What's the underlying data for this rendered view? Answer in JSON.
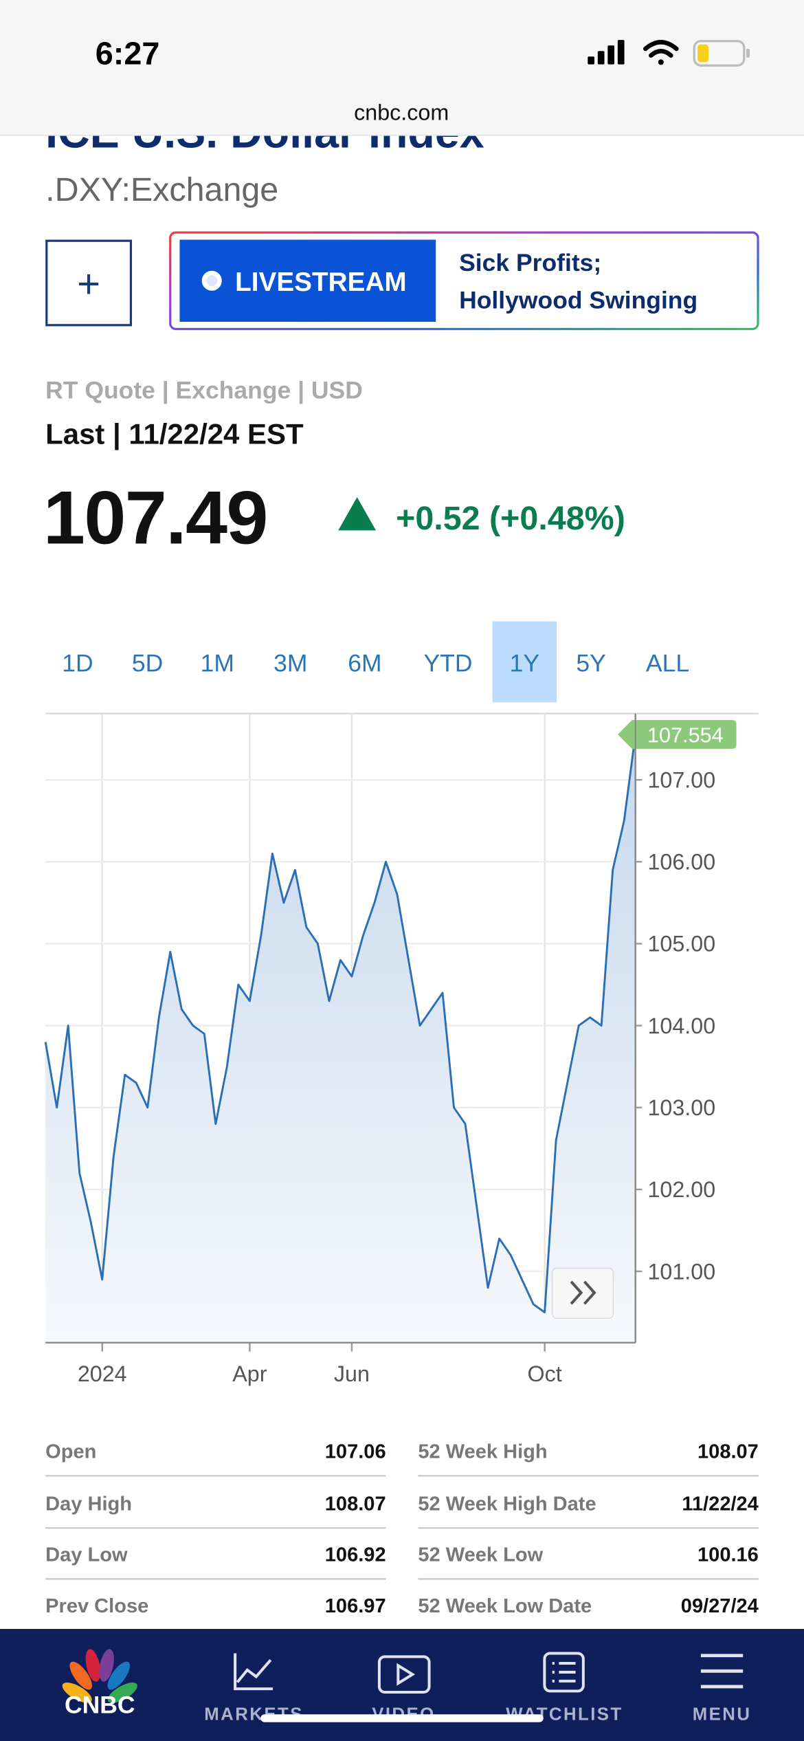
{
  "status_bar": {
    "time": "6:27",
    "url": "cnbc.com"
  },
  "header": {
    "title": "ICE U.S. Dollar Index",
    "symbol": ".DXY:Exchange",
    "add_button": "+",
    "livestream": {
      "label": "LIVESTREAM",
      "headline": [
        "Sick Profits;",
        "Hollywood Swinging"
      ]
    }
  },
  "quote": {
    "source": "RT Quote | Exchange | USD",
    "last": "Last | 11/22/24 EST",
    "price": "107.49",
    "change": "+0.52 (+0.48%)"
  },
  "range_tabs": {
    "options": [
      "1D",
      "5D",
      "1M",
      "3M",
      "6M",
      "YTD",
      "1Y",
      "5Y",
      "ALL"
    ],
    "selected": 6
  },
  "chart_data": {
    "type": "area",
    "categories": [
      null,
      null,
      null,
      null,
      null,
      "2024",
      null,
      null,
      null,
      null,
      null,
      null,
      null,
      null,
      null,
      null,
      null,
      null,
      "Apr",
      null,
      null,
      null,
      null,
      null,
      null,
      null,
      null,
      "Jun",
      null,
      null,
      null,
      null,
      null,
      null,
      null,
      null,
      null,
      null,
      null,
      null,
      null,
      null,
      null,
      null,
      "Oct",
      null,
      null,
      null,
      null,
      null,
      null,
      null,
      null
    ],
    "values": [
      103.8,
      103.0,
      104.0,
      102.2,
      101.6,
      100.9,
      102.4,
      103.4,
      103.3,
      103.0,
      104.1,
      104.9,
      104.2,
      104.0,
      103.9,
      102.8,
      103.5,
      104.5,
      104.3,
      105.1,
      106.1,
      105.5,
      105.9,
      105.2,
      105.0,
      104.3,
      104.8,
      104.6,
      105.1,
      105.5,
      106.0,
      105.6,
      104.8,
      104.0,
      104.2,
      104.4,
      103.0,
      102.8,
      101.8,
      100.8,
      101.4,
      101.2,
      100.9,
      100.6,
      100.5,
      102.6,
      103.3,
      104.0,
      104.1,
      104.0,
      105.9,
      106.5,
      107.554
    ],
    "color": "#2a6fb5",
    "fill": "#c6d8ee",
    "ylim": [
      100.13,
      107.81
    ],
    "yticks": [
      {
        "value": 101,
        "label": "101.00"
      },
      {
        "value": 102,
        "label": "102.00"
      },
      {
        "value": 103,
        "label": "103.00"
      },
      {
        "value": 104,
        "label": "104.00"
      },
      {
        "value": 105,
        "label": "105.00"
      },
      {
        "value": 106,
        "label": "106.00"
      },
      {
        "value": 107,
        "label": "107.00"
      }
    ],
    "grid": true
  },
  "stats": [
    {
      "label": "Open",
      "value": "107.06"
    },
    {
      "label": "Day High",
      "value": "108.07"
    },
    {
      "label": "Day Low",
      "value": "106.92"
    },
    {
      "label": "Prev Close",
      "value": "106.97"
    },
    {
      "label": "52 Week High",
      "value": "108.07"
    },
    {
      "label": "52 Week High Date",
      "value": "11/22/24"
    },
    {
      "label": "52 Week Low",
      "value": "100.16"
    },
    {
      "label": "52 Week Low Date",
      "value": "09/27/24"
    }
  ],
  "nav": {
    "logo": "CNBC",
    "items": [
      "MARKETS",
      "VIDEO",
      "WATCHLIST",
      "MENU"
    ]
  }
}
